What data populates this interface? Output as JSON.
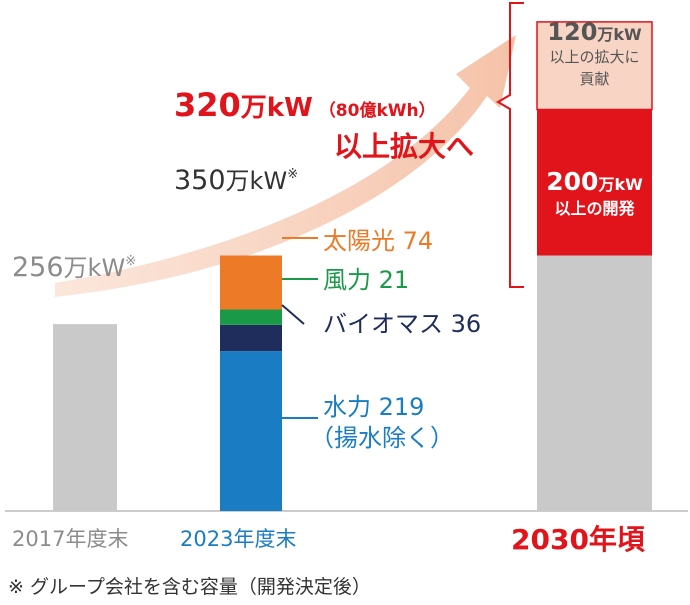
{
  "chart_data": {
    "type": "bar",
    "unit": "万kW",
    "categories": [
      "2017年度末",
      "2023年度末",
      "2030年頃"
    ],
    "ylim": [
      0,
      700
    ],
    "series": [
      {
        "name": "水力",
        "values": [
          null,
          219,
          null
        ]
      },
      {
        "name": "バイオマス",
        "values": [
          null,
          36,
          null
        ]
      },
      {
        "name": "風力",
        "values": [
          null,
          21,
          null
        ]
      },
      {
        "name": "太陽光",
        "values": [
          null,
          74,
          null
        ]
      }
    ],
    "totals": [
      256,
      350,
      null
    ],
    "bar_2017": {
      "value": 256
    },
    "bar_2030": {
      "base": 350,
      "development": 200,
      "contribution": 120
    },
    "labels": {
      "total_2017": {
        "num": "256",
        "unit": "万kW",
        "mark": "※"
      },
      "total_2023": {
        "num": "350",
        "unit": "万kW",
        "mark": "※"
      },
      "solar": "太陽光 74",
      "wind": "風力 21",
      "biomass": "バイオマス 36",
      "hydro_line1": "水力 219",
      "hydro_line2": "（揚水除く）",
      "target_num": "320",
      "target_unit": "万kW",
      "target_paren": "（80億kWh）",
      "target_line2": "以上拡大へ",
      "dev_num": "200",
      "dev_unit": "万kW",
      "dev_sub": "以上の開発",
      "contrib_num": "120",
      "contrib_unit": "万kW",
      "contrib_sub1": "以上の拡大に",
      "contrib_sub2": "貢献"
    },
    "footnote": "※ グループ会社を含む容量（開発決定後）"
  },
  "colors": {
    "gray_bar": "#c9c9ca",
    "hydro": "#1a7dc4",
    "biomass": "#1f2d5c",
    "wind": "#1a9a48",
    "solar": "#ec7a27",
    "red": "#e0141a",
    "pink": "#f8d4c4",
    "arrow": "#f6cdb8",
    "gray_text": "#8c8c8c",
    "dark_text": "#333333"
  }
}
